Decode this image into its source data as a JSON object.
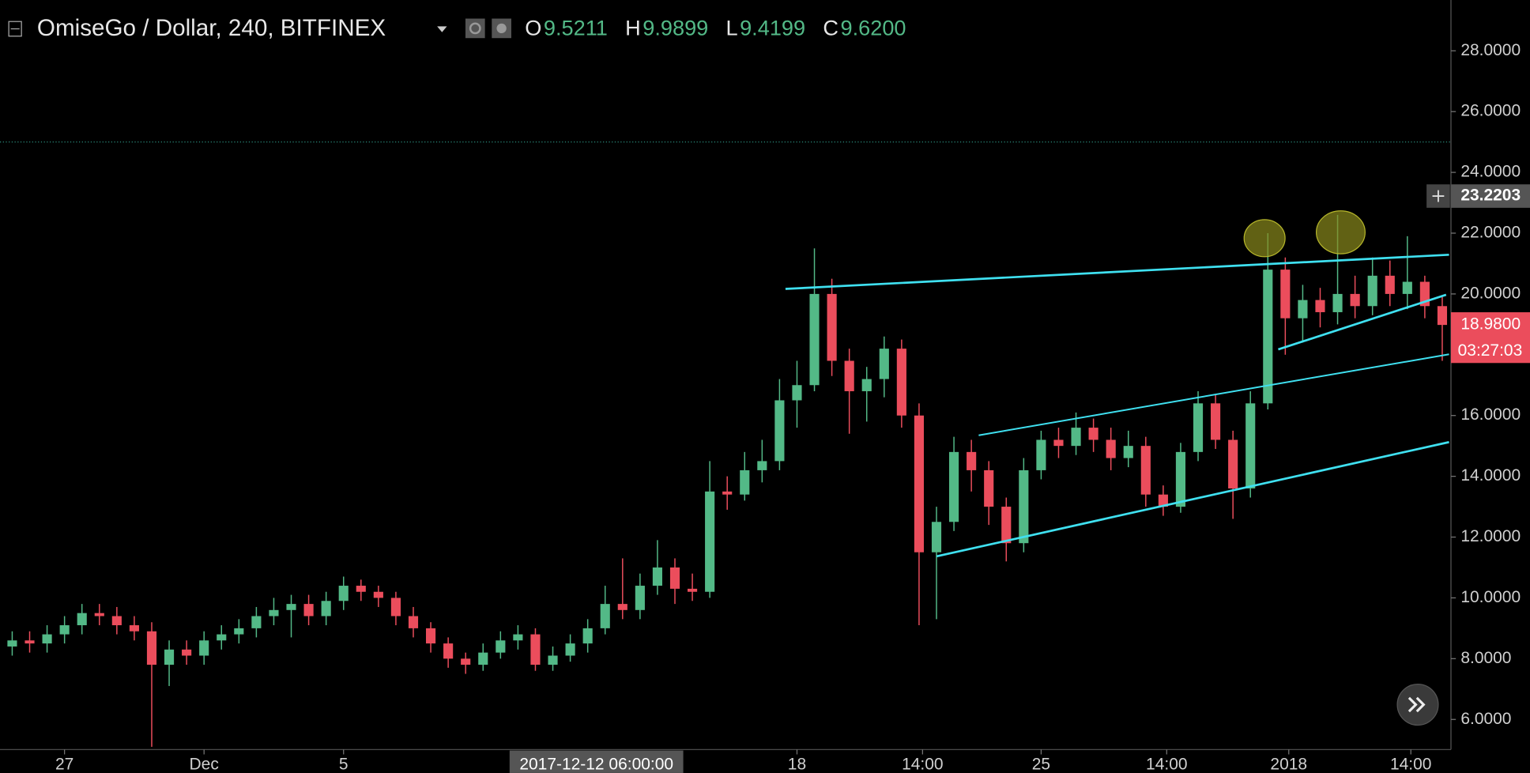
{
  "chart_data": {
    "type": "candlestick",
    "title": "OmiseGo / Dollar, 240, BITFINEX",
    "legend_values": [
      {
        "key": "O",
        "value": "9.5211"
      },
      {
        "key": "H",
        "value": "9.9899"
      },
      {
        "key": "L",
        "value": "9.4199"
      },
      {
        "key": "C",
        "value": "9.6200"
      }
    ],
    "up_color": "#53b987",
    "down_color": "#eb4d5c",
    "x": [
      -1.5,
      -1,
      -0.5,
      0,
      0.5,
      1,
      1.5,
      2,
      2.5,
      3,
      3.5,
      4,
      4.5,
      5,
      5.5,
      6,
      6.5,
      7,
      7.5,
      8,
      8.5,
      9,
      9.5,
      10,
      10.5,
      11,
      11.5,
      12,
      12.5,
      13,
      13.5,
      14,
      14.5,
      15,
      15.5,
      16,
      16.5,
      17,
      17.5,
      18,
      18.5,
      19,
      19.5,
      20,
      20.5,
      21,
      21.5,
      22,
      22.5,
      23,
      23.5,
      24,
      24.5,
      25,
      25.5,
      26,
      26.5,
      27,
      27.5,
      28,
      28.5,
      29,
      29.5,
      30,
      30.5,
      31,
      31.5,
      32,
      32.5,
      33,
      33.5,
      34,
      34.5,
      35,
      35.5,
      36,
      36.5,
      37,
      37.5,
      38,
      38.5,
      39,
      39.5
    ],
    "open": [
      8.4,
      8.6,
      8.5,
      8.8,
      9.1,
      9.5,
      9.4,
      9.1,
      8.9,
      7.8,
      8.3,
      8.1,
      8.6,
      8.8,
      9.0,
      9.4,
      9.6,
      9.8,
      9.4,
      9.9,
      10.4,
      10.2,
      10.0,
      9.4,
      9.0,
      8.5,
      8.0,
      7.8,
      8.2,
      8.6,
      8.8,
      7.8,
      8.1,
      8.5,
      9.0,
      9.8,
      9.6,
      10.4,
      11.0,
      10.3,
      10.2,
      13.5,
      13.4,
      14.2,
      14.5,
      16.5,
      17.0,
      20.0,
      17.8,
      16.8,
      17.2,
      18.2,
      16.0,
      11.5,
      12.5,
      14.8,
      14.2,
      13.0,
      11.8,
      14.2,
      15.2,
      15.0,
      15.6,
      15.2,
      14.6,
      15.0,
      13.4,
      13.0,
      14.8,
      16.4,
      15.2,
      13.6,
      16.4,
      20.8,
      19.2,
      19.8,
      19.4,
      20.0,
      19.6,
      20.6,
      20.0,
      20.4,
      19.6
    ],
    "high": [
      8.9,
      8.9,
      9.1,
      9.4,
      9.8,
      9.8,
      9.7,
      9.4,
      9.2,
      8.6,
      8.6,
      8.9,
      9.1,
      9.3,
      9.7,
      10.0,
      10.1,
      10.1,
      10.2,
      10.7,
      10.6,
      10.4,
      10.2,
      9.7,
      9.2,
      8.7,
      8.2,
      8.5,
      8.9,
      9.1,
      9.0,
      8.4,
      8.8,
      9.3,
      10.4,
      11.3,
      10.8,
      11.9,
      11.3,
      10.8,
      14.5,
      14.0,
      14.8,
      15.2,
      17.2,
      17.8,
      21.5,
      20.5,
      18.2,
      17.6,
      18.6,
      18.5,
      16.4,
      13.0,
      15.3,
      15.2,
      14.5,
      13.3,
      14.6,
      15.5,
      15.6,
      16.1,
      15.9,
      15.6,
      15.5,
      15.3,
      13.7,
      15.1,
      16.8,
      16.7,
      15.5,
      16.8,
      22.0,
      21.2,
      20.3,
      20.2,
      22.6,
      20.6,
      21.2,
      21.1,
      21.9,
      20.6,
      19.9
    ],
    "low": [
      8.1,
      8.2,
      8.2,
      8.5,
      8.8,
      9.1,
      8.8,
      8.6,
      5.1,
      7.1,
      7.8,
      7.8,
      8.3,
      8.5,
      8.7,
      9.1,
      8.7,
      9.1,
      9.1,
      9.6,
      9.9,
      9.7,
      9.1,
      8.7,
      8.2,
      7.7,
      7.5,
      7.6,
      8.0,
      8.3,
      7.6,
      7.6,
      7.9,
      8.2,
      8.8,
      9.3,
      9.3,
      10.1,
      9.8,
      9.9,
      10.0,
      12.9,
      13.2,
      13.8,
      14.2,
      15.6,
      16.8,
      17.3,
      15.4,
      15.8,
      16.6,
      15.6,
      9.1,
      9.3,
      12.2,
      13.5,
      12.4,
      11.2,
      11.5,
      13.9,
      14.6,
      14.7,
      14.8,
      14.2,
      14.3,
      13.0,
      12.7,
      12.8,
      14.5,
      14.9,
      12.6,
      13.3,
      16.2,
      18.0,
      18.4,
      18.9,
      19.0,
      19.2,
      19.3,
      19.6,
      19.5,
      19.2,
      17.8
    ],
    "close": [
      8.6,
      8.5,
      8.8,
      9.1,
      9.5,
      9.4,
      9.1,
      8.9,
      7.8,
      8.3,
      8.1,
      8.6,
      8.8,
      9.0,
      9.4,
      9.6,
      9.8,
      9.4,
      9.9,
      10.4,
      10.2,
      10.0,
      9.4,
      9.0,
      8.5,
      8.0,
      7.8,
      8.2,
      8.6,
      8.8,
      7.8,
      8.1,
      8.5,
      9.0,
      9.8,
      9.6,
      10.4,
      11.0,
      10.3,
      10.2,
      13.5,
      13.4,
      14.2,
      14.5,
      16.5,
      17.0,
      20.0,
      17.8,
      16.8,
      17.2,
      18.2,
      16.0,
      11.5,
      12.5,
      14.8,
      14.2,
      13.0,
      11.8,
      14.2,
      15.2,
      15.0,
      15.6,
      15.2,
      14.6,
      15.0,
      13.4,
      13.0,
      14.8,
      16.4,
      15.2,
      13.6,
      16.4,
      20.8,
      19.2,
      19.8,
      19.4,
      20.0,
      19.6,
      20.6,
      20.0,
      20.4,
      19.6,
      18.98
    ],
    "xlim": [
      -1.85,
      39.75
    ],
    "ylim": [
      5.01,
      29.67
    ],
    "xticks": [
      {
        "value": 0,
        "label": "27"
      },
      {
        "value": 4,
        "label": "Dec"
      },
      {
        "value": 8,
        "label": "5"
      },
      {
        "value": 21,
        "label": "18"
      },
      {
        "value": 24.6,
        "label": "14:00"
      },
      {
        "value": 28,
        "label": "25"
      },
      {
        "value": 31.6,
        "label": "14:00"
      },
      {
        "value": 35.1,
        "label": "2018"
      },
      {
        "value": 38.6,
        "label": "14:00"
      }
    ],
    "yticks": [
      {
        "value": 6,
        "label": "6.0000"
      },
      {
        "value": 8,
        "label": "8.0000"
      },
      {
        "value": 10,
        "label": "10.0000"
      },
      {
        "value": 12,
        "label": "12.0000"
      },
      {
        "value": 14,
        "label": "14.0000"
      },
      {
        "value": 16,
        "label": "16.0000"
      },
      {
        "value": 18,
        "label": "18.0000"
      },
      {
        "value": 20,
        "label": "20.0000"
      },
      {
        "value": 22,
        "label": "22.0000"
      },
      {
        "value": 24,
        "label": "24.0000"
      },
      {
        "value": 26,
        "label": "26.0000"
      },
      {
        "value": 28,
        "label": "28.0000"
      }
    ],
    "horizontal_line": 25,
    "crosshair_price": {
      "value": 23.2203,
      "label": "23.2203"
    },
    "crosshair_time": {
      "value": 15.25,
      "label": "2017-12-12 06:00:00"
    },
    "last_price": {
      "value": 18.98,
      "label": "18.9800"
    },
    "countdown": "03:27:03"
  }
}
